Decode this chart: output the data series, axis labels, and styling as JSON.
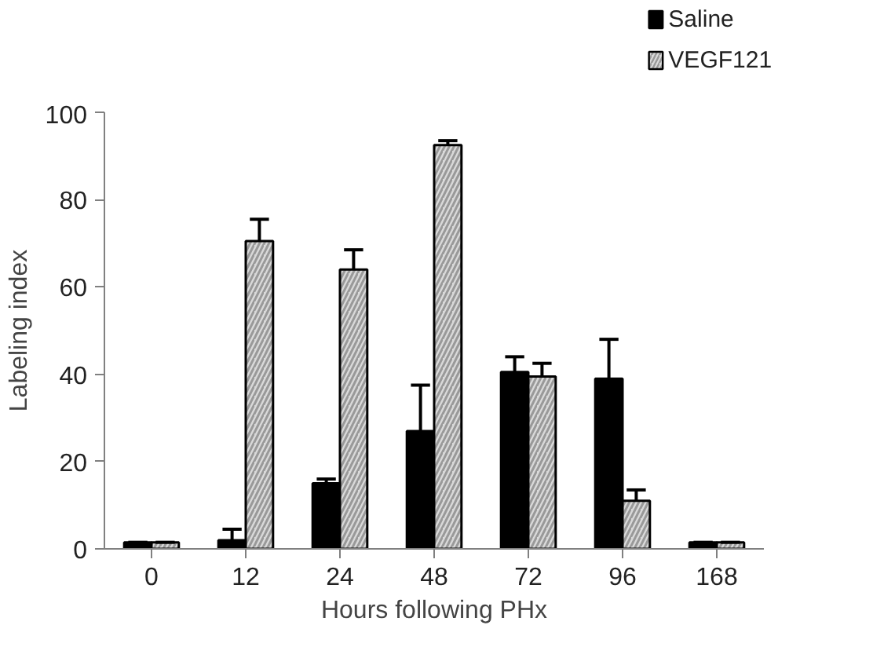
{
  "chart_data": {
    "type": "bar",
    "xlabel": "Hours following PHx",
    "ylabel": "Labeling index",
    "categories": [
      "0",
      "12",
      "24",
      "48",
      "72",
      "96",
      "168"
    ],
    "series": [
      {
        "name": "Saline",
        "color": "#000000",
        "values": [
          1.5,
          2,
          15,
          27,
          40.5,
          39,
          1.5
        ],
        "errors": [
          [
            1.5,
            1.5
          ],
          [
            2,
            4.5
          ],
          [
            15,
            16
          ],
          [
            27,
            37.5
          ],
          [
            40.5,
            44
          ],
          [
            39,
            48
          ],
          [
            1.5,
            1.5
          ]
        ]
      },
      {
        "name": "VEGF121",
        "color": "#d9d9d9",
        "values": [
          1.5,
          70.5,
          64,
          92.5,
          39.5,
          11,
          1.5
        ],
        "errors": [
          [
            1.5,
            1.5
          ],
          [
            70.5,
            75.5
          ],
          [
            64,
            68.5
          ],
          [
            92.5,
            93.5
          ],
          [
            39.5,
            42.5
          ],
          [
            11,
            13.5
          ],
          [
            1.5,
            1.5
          ]
        ]
      }
    ],
    "ylim": [
      0,
      100
    ],
    "yticks": [
      0,
      20,
      40,
      60,
      80,
      100
    ],
    "grid": false,
    "legend": "top right"
  }
}
